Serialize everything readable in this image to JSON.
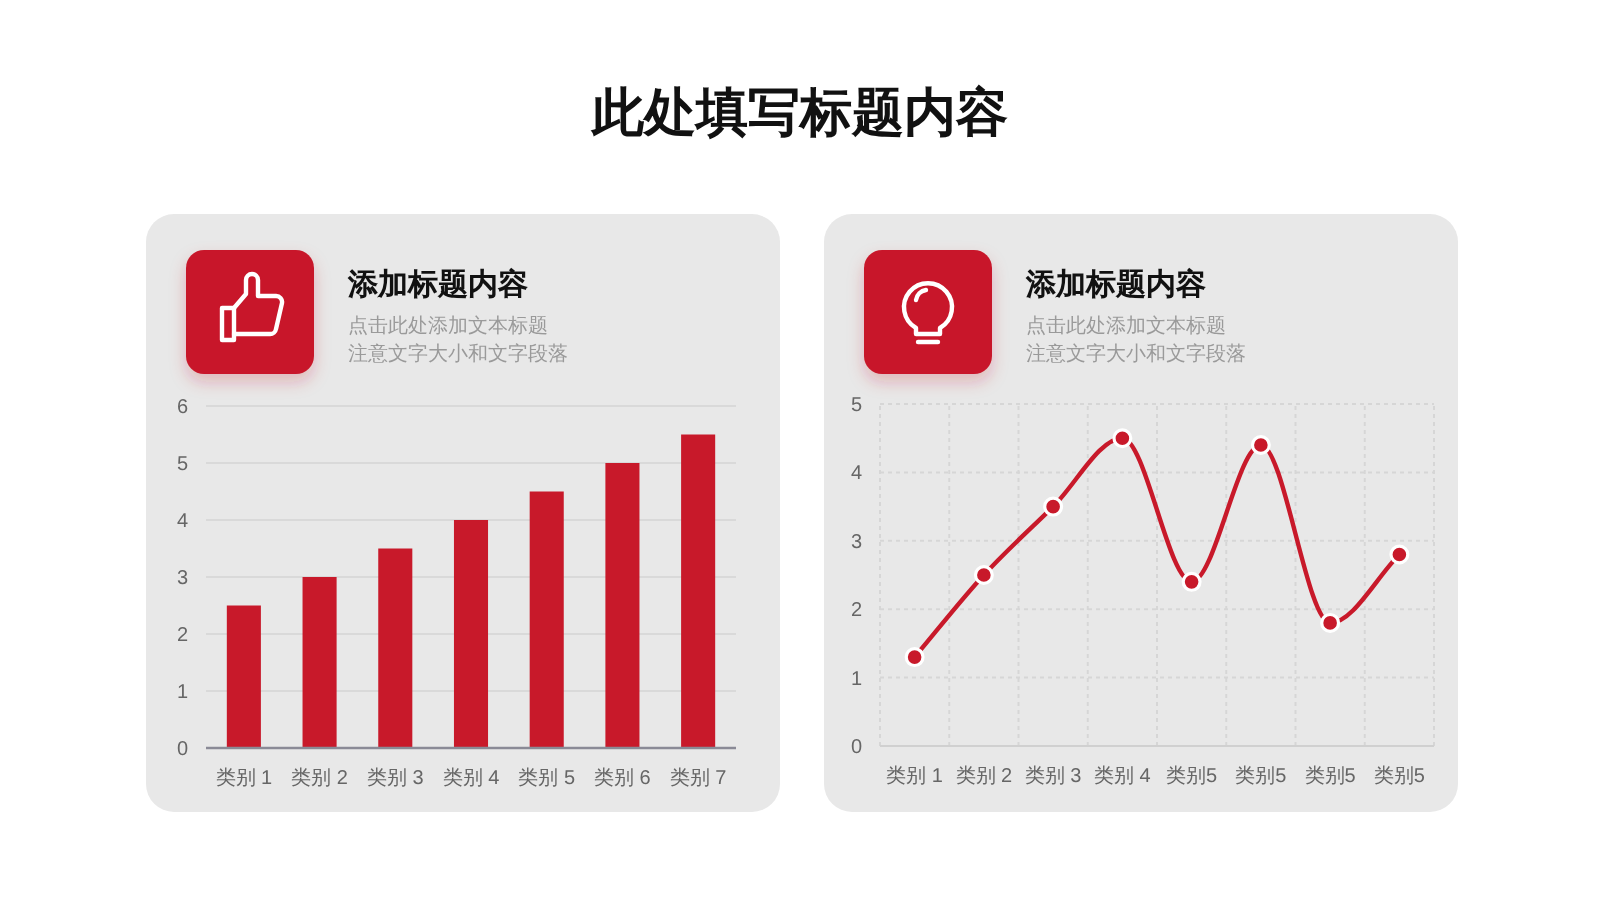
{
  "chart_data": [
    {
      "type": "other",
      "title": "此处填写标题内容"
    },
    {
      "type": "bar",
      "title": "添加标题内容",
      "subtitle": "点击此处添加文本标题",
      "annotations": [
        "注意文字大小和文字段落"
      ],
      "categories": [
        "类别 1",
        "类别 2",
        "类别 3",
        "类别 4",
        "类别 5",
        "类别 6",
        "类别 7"
      ],
      "values": [
        2.5,
        3,
        3.5,
        4,
        4.5,
        5,
        5.5
      ],
      "color": "#c8192a",
      "ylim": [
        0,
        6
      ],
      "yticks": [
        0,
        1,
        2,
        3,
        4,
        5,
        6
      ],
      "grid": "y"
    },
    {
      "type": "line",
      "title": "添加标题内容",
      "subtitle": "点击此处添加文本标题",
      "annotations": [
        "注意文字大小和文字段落"
      ],
      "categories": [
        "类别 1",
        "类别 2",
        "类别 3",
        "类别 4",
        "类别5",
        "类别5",
        "类别5",
        "类别5"
      ],
      "values": [
        1.3,
        2.5,
        3.5,
        4.5,
        2.4,
        4.4,
        1.8,
        2.8
      ],
      "color": "#c8192a",
      "ylim": [
        0,
        5
      ],
      "yticks": [
        0,
        1,
        2,
        3,
        4,
        5
      ],
      "grid": true,
      "marker": "circle",
      "line_style": "solid"
    }
  ]
}
